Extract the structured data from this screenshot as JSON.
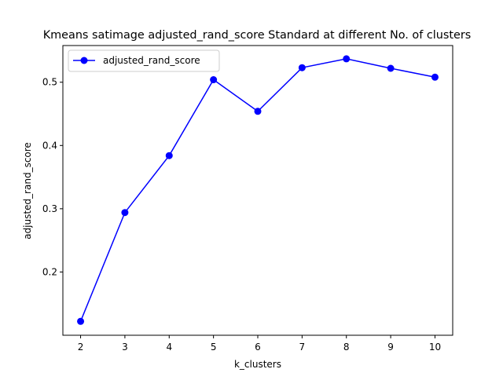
{
  "chart_data": {
    "type": "line",
    "title": "Kmeans satimage adjusted_rand_score Standard at different No. of clusters",
    "xlabel": "k_clusters",
    "ylabel": "adjusted_rand_score",
    "x": [
      2,
      3,
      4,
      5,
      6,
      7,
      8,
      9,
      10
    ],
    "series": [
      {
        "name": "adjusted_rand_score",
        "values": [
          0.122,
          0.294,
          0.384,
          0.504,
          0.454,
          0.523,
          0.537,
          0.522,
          0.508
        ],
        "color": "#0000ff",
        "marker": "circle"
      }
    ],
    "xlim": [
      1.6,
      10.4
    ],
    "ylim": [
      0.1,
      0.558
    ],
    "xticks": [
      "2",
      "3",
      "4",
      "5",
      "6",
      "7",
      "8",
      "9",
      "10"
    ],
    "yticks": [
      "0.2",
      "0.3",
      "0.4",
      "0.5"
    ],
    "ytick_values": [
      0.2,
      0.3,
      0.4,
      0.5
    ],
    "grid": false,
    "legend_position": "upper-left"
  }
}
